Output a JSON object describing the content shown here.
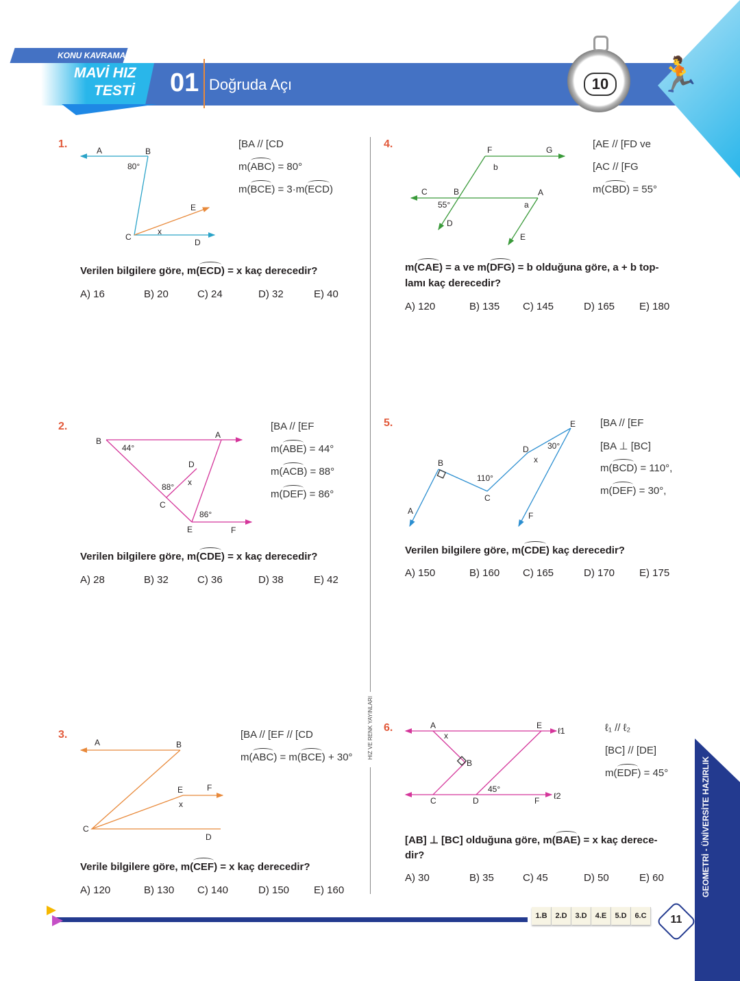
{
  "header": {
    "badge": "KONU KAVRAMA",
    "series": "MAVİ HIZ",
    "series2": "TESTİ",
    "test_no": "01",
    "title": "Doğruda Açı",
    "timer": "10",
    "accent": "#4472c4",
    "light": "#29b6ea"
  },
  "publisher": "HIZ VE RENK YAYINLARI",
  "side_label": "GEOMETRİ - ÜNİVERSİTE HAZIRLIK",
  "page_number": "11",
  "answer_key": [
    "1.B",
    "2.D",
    "3.D",
    "4.E",
    "5.D",
    "6.C"
  ],
  "questions": [
    {
      "no": "1.",
      "conds": [
        {
          "pre": "[BA // [CD",
          "hat": "",
          "post": ""
        },
        {
          "pre": "m(",
          "hat": "ABC",
          "post": ") = 80°"
        },
        {
          "pre": "m(",
          "hat": "BCE",
          "post": ") = 3·m("
        },
        {
          "pre": "",
          "hat": "ECD",
          "post": ")"
        }
      ],
      "q": [
        {
          "pre": "Verilen bilgilere göre, m(",
          "hat": "ECD",
          "post": ") = x kaç derecedir?"
        }
      ],
      "options": [
        "A) 16",
        "B) 20",
        "C) 24",
        "D) 32",
        "E) 40"
      ],
      "labels": [
        "A",
        "B",
        "80°",
        "C",
        "x",
        "E",
        "D"
      ]
    },
    {
      "no": "2.",
      "conds": [
        {
          "pre": "[BA // [EF",
          "hat": "",
          "post": ""
        },
        {
          "pre": "m(",
          "hat": "ABE",
          "post": ") = 44°"
        },
        {
          "pre": "m(",
          "hat": "ACB",
          "post": ") = 88°"
        },
        {
          "pre": "m(",
          "hat": "DEF",
          "post": ") = 86°"
        }
      ],
      "q": [
        {
          "pre": "Verilen bilgilere göre, m(",
          "hat": "CDE",
          "post": ") = x kaç derecedir?"
        }
      ],
      "options": [
        "A) 28",
        "B) 32",
        "C) 36",
        "D) 38",
        "E) 42"
      ],
      "labels": [
        "B",
        "44°",
        "A",
        "D",
        "x",
        "88°",
        "C",
        "86°",
        "E",
        "F"
      ]
    },
    {
      "no": "3.",
      "conds": [
        {
          "pre": "[BA // [EF // [CD",
          "hat": "",
          "post": ""
        },
        {
          "pre": "m(",
          "hat": "ABC",
          "post": ") = m("
        },
        {
          "pre": "",
          "hat": "BCE",
          "post": ") + 30°"
        }
      ],
      "q": [
        {
          "pre": "Verile bilgilere göre, m(",
          "hat": "CEF",
          "post": ") = x kaç derecedir?"
        }
      ],
      "options": [
        "A) 120",
        "B) 130",
        "C) 140",
        "D) 150",
        "E) 160"
      ],
      "labels": [
        "A",
        "B",
        "E",
        "F",
        "x",
        "C",
        "D"
      ]
    },
    {
      "no": "4.",
      "conds": [
        {
          "pre": "[AE // [FD ve",
          "hat": "",
          "post": ""
        },
        {
          "pre": "[AC // [FG",
          "hat": "",
          "post": ""
        },
        {
          "pre": "m(",
          "hat": "CBD",
          "post": ") = 55°"
        }
      ],
      "q": [
        {
          "pre": "m(",
          "hat": "CAE",
          "post": ") = a ve m("
        },
        {
          "pre": "",
          "hat": "DFG",
          "post": ") = b olduğuna göre, a + b top-"
        },
        {
          "pre": "lamı kaç derecedir?",
          "hat": "",
          "post": ""
        }
      ],
      "options": [
        "A) 120",
        "B) 135",
        "C) 145",
        "D) 165",
        "E) 180"
      ],
      "labels": [
        "F",
        "G",
        "b",
        "C",
        "B",
        "A",
        "55°",
        "a",
        "D",
        "E"
      ]
    },
    {
      "no": "5.",
      "conds": [
        {
          "pre": "[BA // [EF",
          "hat": "",
          "post": ""
        },
        {
          "pre": "[BA ⊥ [BC]",
          "hat": "",
          "post": ""
        },
        {
          "pre": "m(",
          "hat": "BCD",
          "post": ") = 110°,"
        },
        {
          "pre": "m(",
          "hat": "DEF",
          "post": ") = 30°,"
        }
      ],
      "q": [
        {
          "pre": "Verilen bilgilere göre, m(",
          "hat": "CDE",
          "post": ") kaç derecedir?"
        }
      ],
      "options": [
        "A) 150",
        "B) 160",
        "C) 165",
        "D) 170",
        "E) 175"
      ],
      "labels": [
        "A",
        "B",
        "110°",
        "C",
        "D",
        "x",
        "30°",
        "E",
        "F"
      ]
    },
    {
      "no": "6.",
      "conds": [
        {
          "pre": "ℓ₁ // ℓ₂",
          "hat": "",
          "post": ""
        },
        {
          "pre": "[BC] // [DE]",
          "hat": "",
          "post": ""
        },
        {
          "pre": "m(",
          "hat": "EDF",
          "post": ") = 45°"
        }
      ],
      "q": [
        {
          "pre": "[AB] ⊥ [BC] olduğuna göre, m(",
          "hat": "BAE",
          "post": ") = x kaç derece-"
        },
        {
          "pre": "dir?",
          "hat": "",
          "post": ""
        }
      ],
      "options": [
        "A) 30",
        "B) 35",
        "C) 45",
        "D) 50",
        "E) 60"
      ],
      "labels": [
        "A",
        "x",
        "E",
        "ℓ1",
        "B",
        "45°",
        "C",
        "D",
        "F",
        "ℓ2"
      ]
    }
  ]
}
